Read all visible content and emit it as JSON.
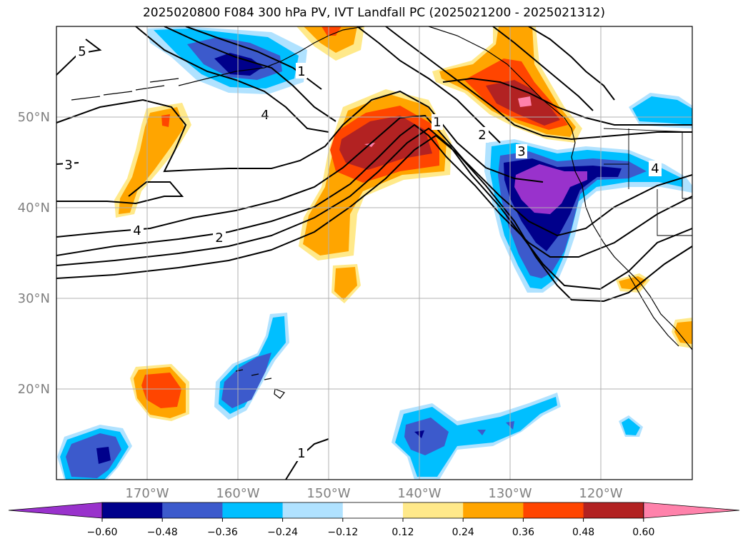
{
  "title": "2025020800 F084 300 hPa PV, IVT Landfall PC (2025021200 - 2025021312)",
  "map": {
    "lat_labels": [
      "20°N",
      "30°N",
      "40°N",
      "50°N"
    ],
    "lon_labels": [
      "170°W",
      "160°W",
      "150°W",
      "140°W",
      "130°W",
      "120°W"
    ],
    "lat_range": [
      10,
      60
    ],
    "lon_range": [
      -180,
      -110
    ],
    "gridlines": true
  },
  "contour_labels": [
    "5",
    "1",
    "4",
    "3",
    "4",
    "2",
    "1",
    "2",
    "3",
    "4",
    "1"
  ],
  "colorbar": {
    "tick_labels": [
      "−0.60",
      "−0.48",
      "−0.36",
      "−0.24",
      "−0.12",
      "0.12",
      "0.24",
      "0.36",
      "0.48",
      "0.60"
    ],
    "colors": [
      "#9932CC",
      "#00008B",
      "#3C5ACC",
      "#00BFFF",
      "#B0E2FF",
      "#FFFFFF",
      "#FFE98A",
      "#FFA500",
      "#FF4500",
      "#B22222",
      "#FF82AB"
    ],
    "extend": "both"
  },
  "palette": {
    "purple": "#9932CC",
    "navy": "#00008B",
    "blue": "#3C5ACC",
    "cyan": "#00BFFF",
    "lightblue": "#B0E2FF",
    "yellow": "#FFE98A",
    "orange": "#FFA500",
    "redorange": "#FF4500",
    "firebrick": "#B22222",
    "pink": "#FF82AB"
  }
}
